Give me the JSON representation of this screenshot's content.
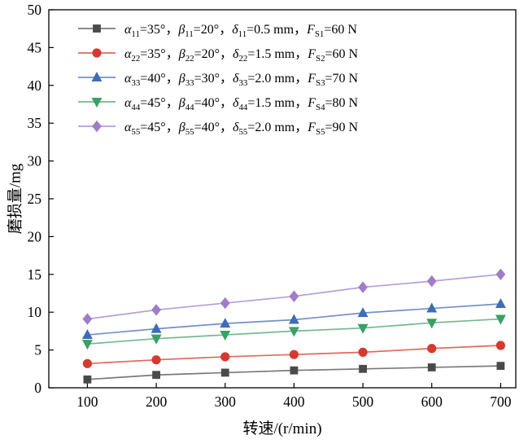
{
  "figure": {
    "background": "#ffffff",
    "axis_color": "#000000"
  },
  "chart_data": {
    "type": "line",
    "title": "",
    "xlabel": "转速/(r/min)",
    "ylabel": "磨损量/mg",
    "grid": false,
    "legend_position": "top-left-inside",
    "x": [
      100,
      200,
      300,
      400,
      500,
      600,
      700
    ],
    "x_ticks": [
      100,
      200,
      300,
      400,
      500,
      600,
      700
    ],
    "y_ticks": [
      0,
      5,
      10,
      15,
      20,
      25,
      30,
      35,
      40,
      45,
      50
    ],
    "xlim": [
      44,
      722
    ],
    "ylim": [
      0,
      50
    ],
    "series": [
      {
        "name_markup": "*α*_{11}=35°，*β*_{11}=20°，*δ*_{11}=0.5 mm，*F*_{S1}=60 N",
        "marker": "square",
        "color": "#4a4a4a",
        "line_color": "#7a7a7a",
        "values": [
          1.1,
          1.7,
          2.0,
          2.3,
          2.5,
          2.7,
          2.9
        ]
      },
      {
        "name_markup": "*α*_{22}=35°，*β*_{22}=20°，*δ*_{22}=1.5 mm，*F*_{S2}=60 N",
        "marker": "circle",
        "color": "#d43a2f",
        "line_color": "#e0695f",
        "values": [
          3.2,
          3.7,
          4.1,
          4.4,
          4.7,
          5.2,
          5.6
        ]
      },
      {
        "name_markup": "*α*_{33}=40°，*β*_{33}=30°，*δ*_{33}=2.0 mm，*F*_{S3}=70 N",
        "marker": "triangle-up",
        "color": "#3e6cb5",
        "line_color": "#7390c9",
        "values": [
          7.0,
          7.8,
          8.5,
          9.0,
          9.9,
          10.5,
          11.1
        ]
      },
      {
        "name_markup": "*α*_{44}=45°，*β*_{44}=40°，*δ*_{44}=1.5 mm，*F*_{S4}=80 N",
        "marker": "triangle-down",
        "color": "#39a066",
        "line_color": "#72b98f",
        "values": [
          5.8,
          6.5,
          7.0,
          7.5,
          7.9,
          8.6,
          9.1
        ]
      },
      {
        "name_markup": "*α*_{55}=45°，*β*_{55}=40°，*δ*_{55}=2.0 mm，*F*_{S5}=90 N",
        "marker": "diamond",
        "color": "#a07dc8",
        "line_color": "#b69dd7",
        "values": [
          9.1,
          10.3,
          11.2,
          12.1,
          13.3,
          14.1,
          15.0
        ]
      }
    ]
  }
}
